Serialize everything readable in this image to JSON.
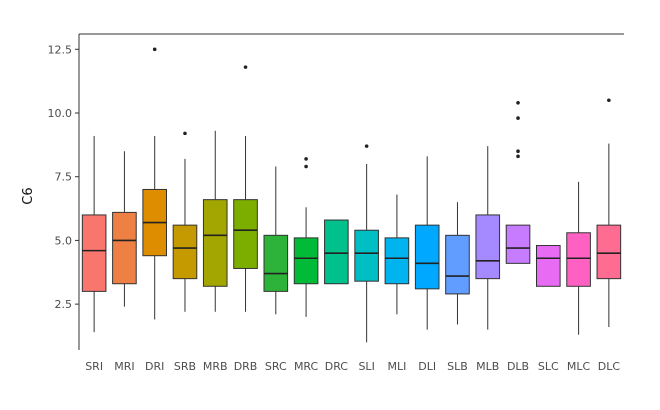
{
  "chart_data": {
    "type": "boxplot",
    "title": "",
    "xlabel": "",
    "ylabel": "C6",
    "ylim": [
      0.7,
      13.1
    ],
    "yticks": [
      2.5,
      5.0,
      7.5,
      10.0,
      12.5
    ],
    "ytick_labels": [
      "2.5",
      "5.0",
      "7.5",
      "10.0",
      "12.5"
    ],
    "grid": false,
    "legend": "none",
    "categories": [
      "SRI",
      "MRI",
      "DRI",
      "SRB",
      "MRB",
      "DRB",
      "SRC",
      "MRC",
      "DRC",
      "SLI",
      "MLI",
      "DLI",
      "SLB",
      "MLB",
      "DLB",
      "SLC",
      "MLC",
      "DLC"
    ],
    "boxes": [
      {
        "min": 1.4,
        "q1": 3.0,
        "median": 4.6,
        "q3": 6.0,
        "max": 9.1,
        "outliers": []
      },
      {
        "min": 2.4,
        "q1": 3.3,
        "median": 5.0,
        "q3": 6.1,
        "max": 8.5,
        "outliers": []
      },
      {
        "min": 1.9,
        "q1": 4.4,
        "median": 5.7,
        "q3": 7.0,
        "max": 9.1,
        "outliers": [
          12.5
        ]
      },
      {
        "min": 2.2,
        "q1": 3.5,
        "median": 4.7,
        "q3": 5.6,
        "max": 8.2,
        "outliers": [
          9.2
        ]
      },
      {
        "min": 2.2,
        "q1": 3.2,
        "median": 5.2,
        "q3": 6.6,
        "max": 9.3,
        "outliers": []
      },
      {
        "min": 2.2,
        "q1": 3.9,
        "median": 5.4,
        "q3": 6.6,
        "max": 9.1,
        "outliers": [
          11.8
        ]
      },
      {
        "min": 2.1,
        "q1": 3.0,
        "median": 3.7,
        "q3": 5.2,
        "max": 7.9,
        "outliers": []
      },
      {
        "min": 2.0,
        "q1": 3.3,
        "median": 4.3,
        "q3": 5.1,
        "max": 6.3,
        "outliers": [
          8.2,
          7.9
        ]
      },
      {
        "min": 3.3,
        "q1": 3.3,
        "median": 4.5,
        "q3": 5.8,
        "max": 5.8,
        "outliers": []
      },
      {
        "min": 1.0,
        "q1": 3.4,
        "median": 4.5,
        "q3": 5.4,
        "max": 8.0,
        "outliers": [
          8.7
        ]
      },
      {
        "min": 2.1,
        "q1": 3.3,
        "median": 4.3,
        "q3": 5.1,
        "max": 6.8,
        "outliers": []
      },
      {
        "min": 1.5,
        "q1": 3.1,
        "median": 4.1,
        "q3": 5.6,
        "max": 8.3,
        "outliers": []
      },
      {
        "min": 1.7,
        "q1": 2.9,
        "median": 3.6,
        "q3": 5.2,
        "max": 6.5,
        "outliers": []
      },
      {
        "min": 1.5,
        "q1": 3.5,
        "median": 4.2,
        "q3": 6.0,
        "max": 8.7,
        "outliers": []
      },
      {
        "min": 4.1,
        "q1": 4.1,
        "median": 4.7,
        "q3": 5.6,
        "max": 5.6,
        "outliers": [
          10.4,
          9.8,
          8.5,
          8.3
        ]
      },
      {
        "min": 3.2,
        "q1": 3.2,
        "median": 4.3,
        "q3": 4.8,
        "max": 4.8,
        "outliers": []
      },
      {
        "min": 1.3,
        "q1": 3.2,
        "median": 4.3,
        "q3": 5.3,
        "max": 7.3,
        "outliers": []
      },
      {
        "min": 1.6,
        "q1": 3.5,
        "median": 4.5,
        "q3": 5.6,
        "max": 8.8,
        "outliers": [
          10.5
        ]
      }
    ],
    "colors": [
      "#F8766D",
      "#EE8043",
      "#DE8C00",
      "#C49A00",
      "#A3A500",
      "#7CAE00",
      "#2EB33A",
      "#00BA38",
      "#00C08B",
      "#00BFC4",
      "#00B4EF",
      "#00A9FF",
      "#619CFF",
      "#A58AFF",
      "#C77CFF",
      "#E76BF3",
      "#FF61C3",
      "#FF6C91"
    ]
  }
}
